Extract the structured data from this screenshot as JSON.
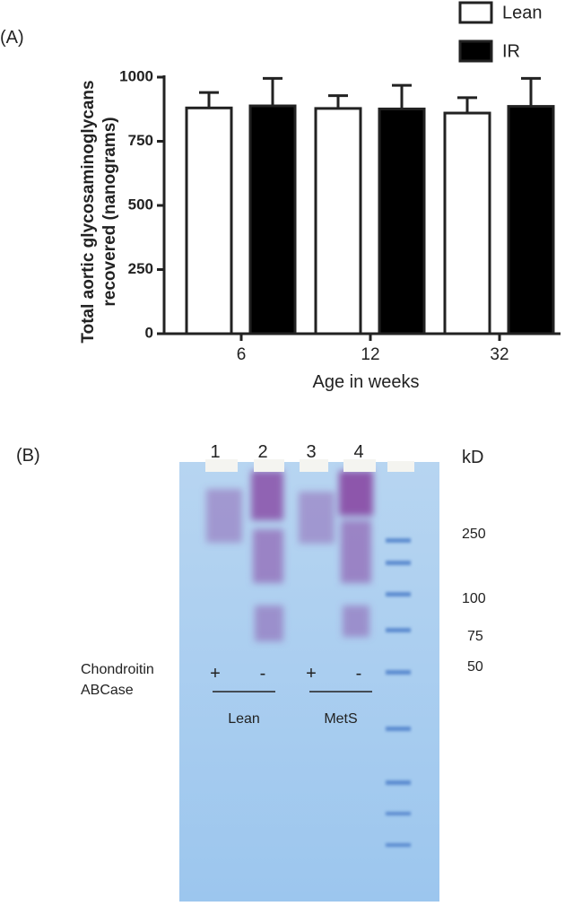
{
  "chart_data": {
    "type": "bar",
    "panel_label": "(A)",
    "ylabel_lines": [
      "Total  aortic glycosaminoglycans",
      "recovered (nanograms)"
    ],
    "xlabel": "Age in weeks",
    "categories": [
      "6",
      "12",
      "32"
    ],
    "series": [
      {
        "name": "Lean",
        "color": "#ffffff",
        "values": [
          880,
          878,
          860
        ],
        "errors": [
          60,
          50,
          60
        ]
      },
      {
        "name": "IR",
        "color": "#000000",
        "values": [
          888,
          876,
          886
        ],
        "errors": [
          107,
          92,
          109
        ]
      }
    ],
    "ylim": [
      0,
      1000
    ],
    "yticks": [
      0,
      250,
      500,
      750,
      1000
    ],
    "legend": "top-right"
  },
  "gel": {
    "panel_label": "(B)",
    "lanes": [
      "1",
      "2",
      "3",
      "4"
    ],
    "unit": "kD",
    "markers": [
      "250",
      "100",
      "75",
      "50"
    ],
    "treatment_lines": [
      "Chondroitin",
      "ABCase"
    ],
    "treatment": [
      "+",
      "-",
      "+",
      "-"
    ],
    "groups": [
      "Lean",
      "MetS"
    ]
  }
}
